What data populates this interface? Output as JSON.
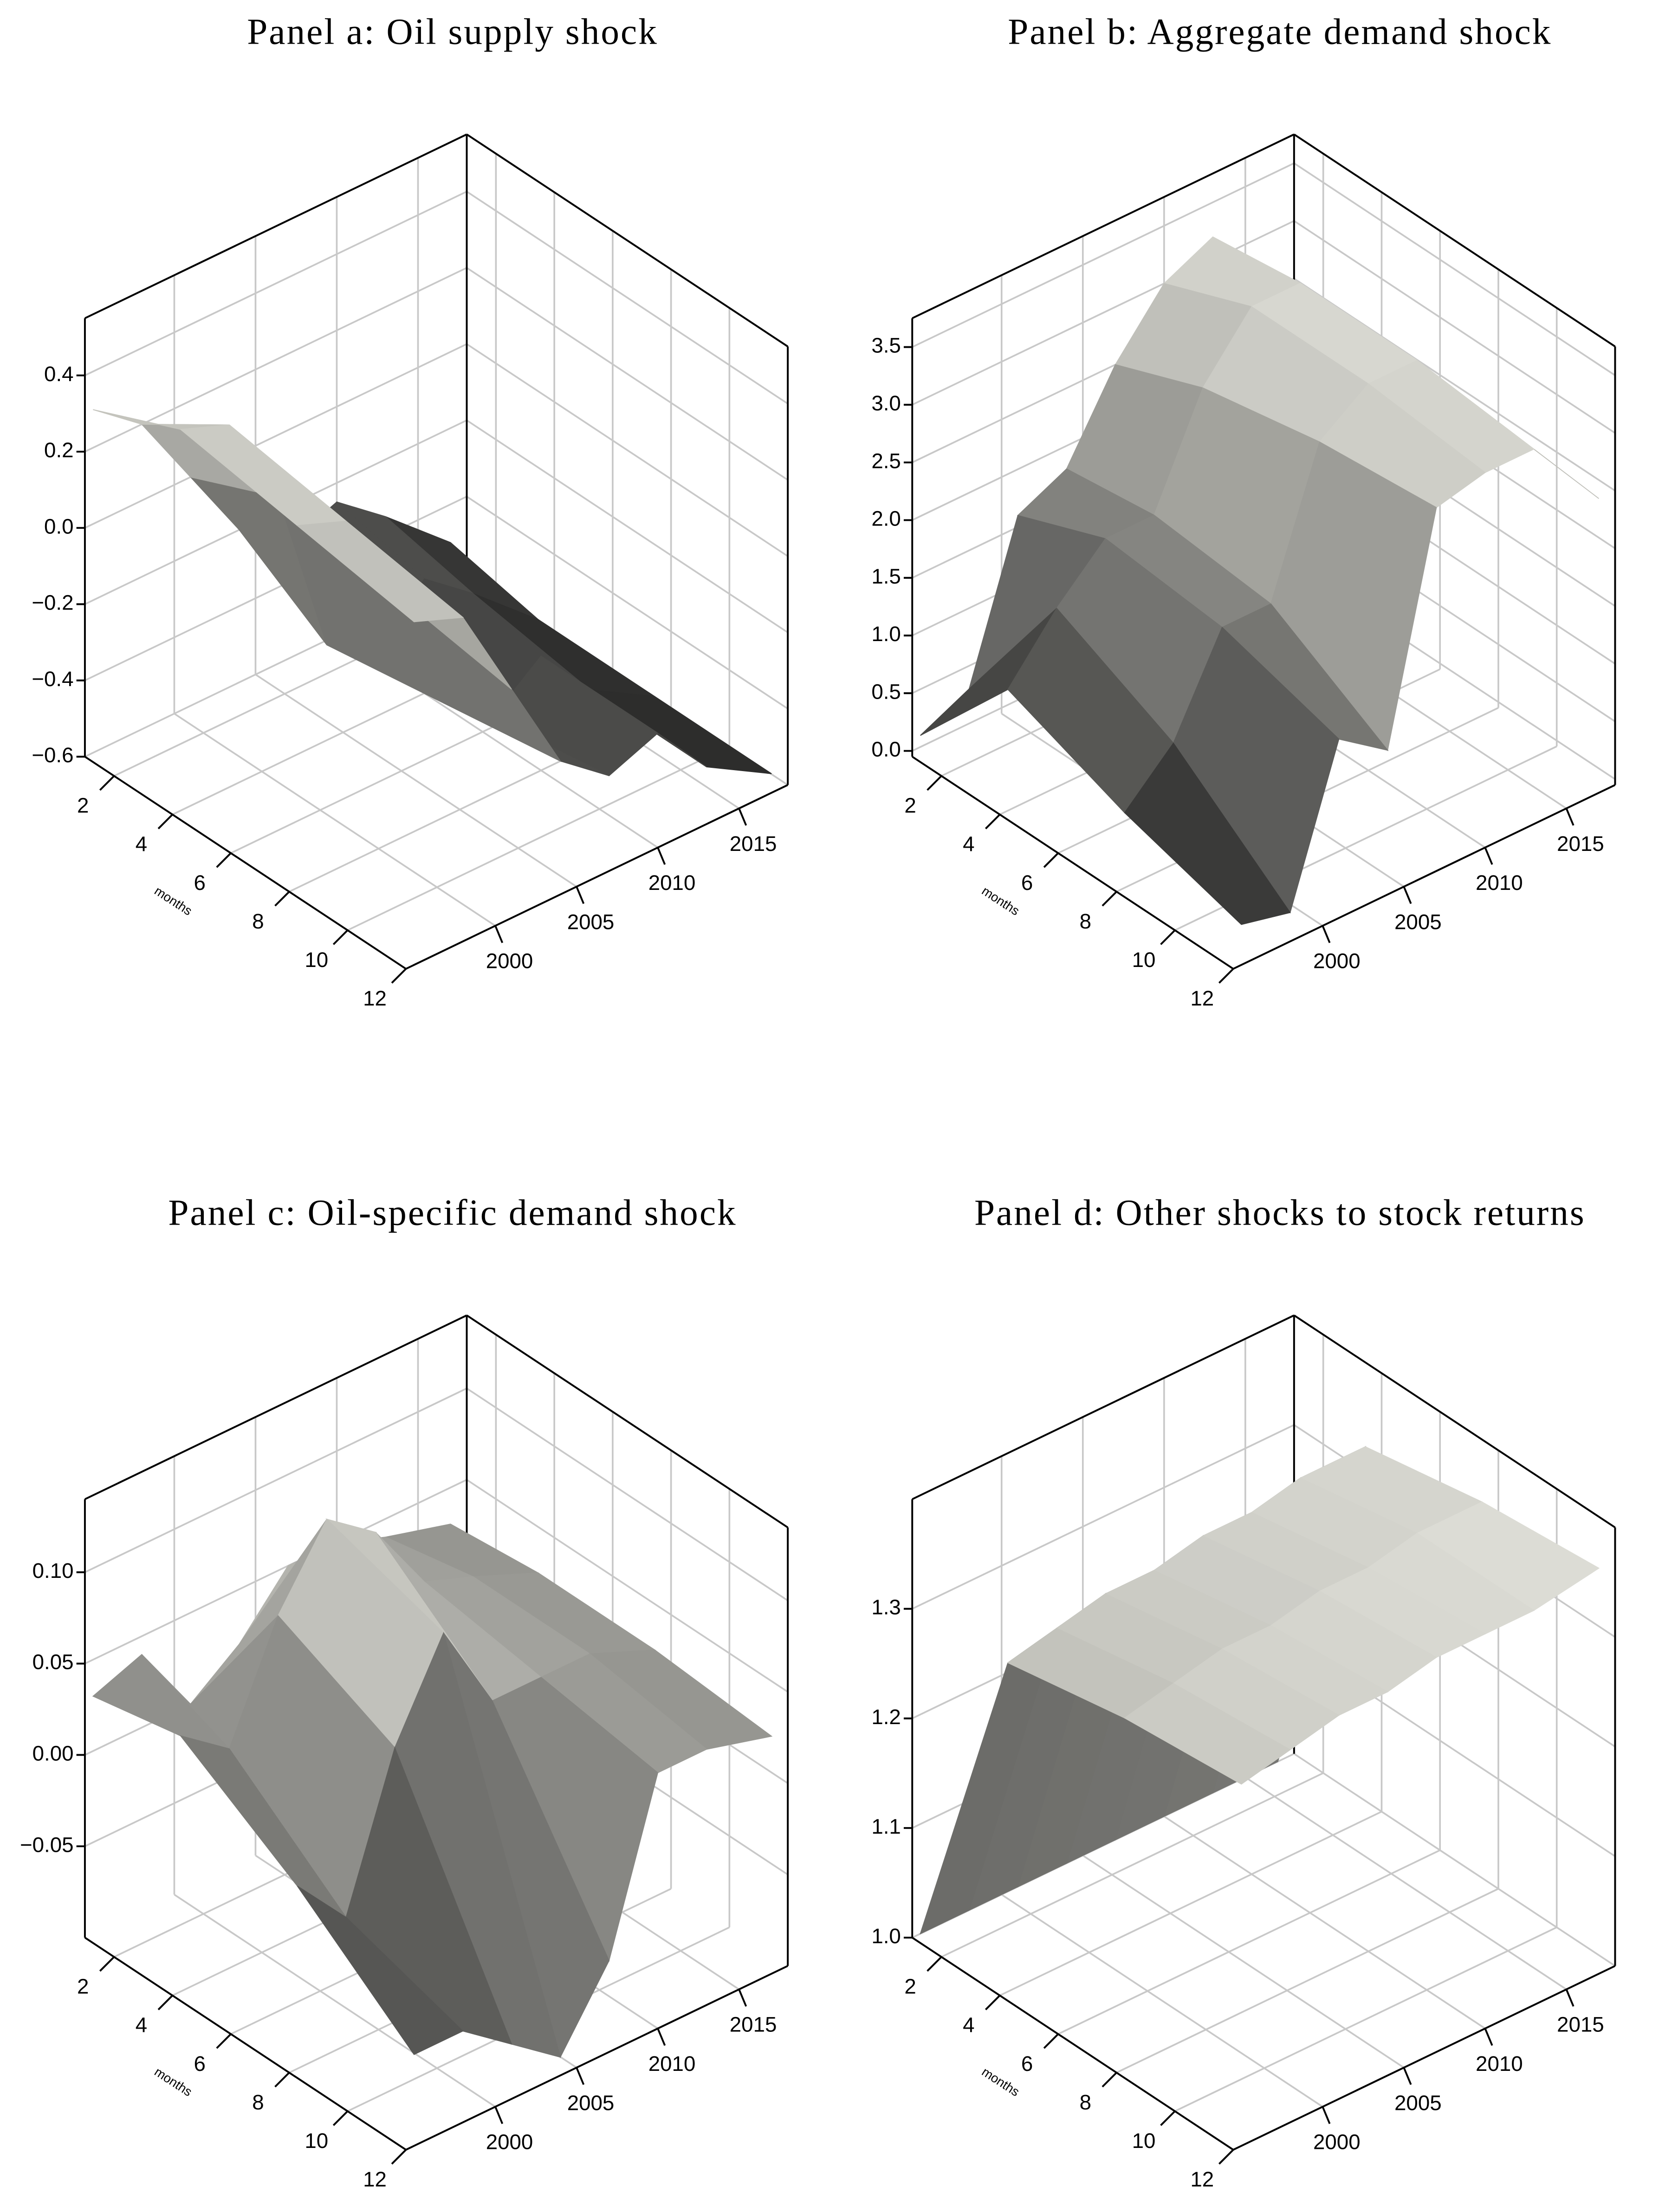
{
  "chart_data": [
    {
      "type": "surface",
      "title": "Panel a: Oil supply shock",
      "xlabel": "months",
      "years": [
        1995,
        1998,
        2001,
        2004,
        2007,
        2010,
        2013,
        2017
      ],
      "months": [
        1,
        4,
        8,
        12
      ],
      "z": [
        [
          0.3,
          0.4,
          0.35,
          0.3
        ],
        [
          0.2,
          0.35,
          0.3,
          0.25
        ],
        [
          0.0,
          0.1,
          0.05,
          0.0
        ],
        [
          -0.2,
          -0.35,
          -0.3,
          -0.25
        ],
        [
          -0.3,
          -0.45,
          -0.4,
          -0.35
        ],
        [
          -0.25,
          -0.3,
          -0.3,
          -0.3
        ],
        [
          -0.35,
          -0.4,
          -0.45,
          -0.45
        ],
        [
          -0.5,
          -0.55,
          -0.55,
          -0.55
        ]
      ],
      "yearlim": [
        1994.5,
        2018
      ],
      "yearticks": [
        2000,
        2005,
        2010,
        2015
      ],
      "monthlim": [
        1,
        12
      ],
      "monthticks": [
        2,
        4,
        6,
        8,
        10,
        12
      ],
      "zlim": [
        -0.6,
        0.55
      ],
      "zticks": [
        {
          "value": -0.6,
          "label": "−0.6"
        },
        {
          "value": -0.4,
          "label": "−0.4"
        },
        {
          "value": -0.2,
          "label": "−0.2"
        },
        {
          "value": 0,
          "label": "0.0"
        },
        {
          "value": 0.2,
          "label": "0.2"
        },
        {
          "value": 0.4,
          "label": "0.4"
        }
      ],
      "colormap": [
        "#1a1a1a",
        "#f0f0e8"
      ],
      "grid": true
    },
    {
      "type": "surface",
      "title": "Panel b: Aggregate demand shock",
      "xlabel": "months",
      "years": [
        1995,
        1998,
        2001,
        2004,
        2007,
        2010,
        2013,
        2017
      ],
      "months": [
        1,
        4,
        8,
        12
      ],
      "z": [
        [
          0.1,
          1.0,
          0.6,
          0.3
        ],
        [
          0.3,
          1.5,
          1.0,
          0.2
        ],
        [
          1.6,
          1.9,
          1.8,
          1.5
        ],
        [
          1.8,
          1.9,
          1.8,
          1.2
        ],
        [
          2.5,
          2.8,
          3.0,
          3.1
        ],
        [
          3.0,
          3.3,
          3.3,
          3.2
        ],
        [
          3.2,
          3.3,
          3.3,
          3.2
        ],
        [
          2.5,
          2.6,
          2.6,
          2.5
        ]
      ],
      "yearlim": [
        1994.5,
        2018
      ],
      "yearticks": [
        2000,
        2005,
        2010,
        2015
      ],
      "monthlim": [
        1,
        12
      ],
      "monthticks": [
        2,
        4,
        6,
        8,
        10,
        12
      ],
      "zlim": [
        -0.05,
        3.75
      ],
      "zticks": [
        {
          "value": 0,
          "label": "0.0"
        },
        {
          "value": 0.5,
          "label": "0.5"
        },
        {
          "value": 1,
          "label": "1.0"
        },
        {
          "value": 1.5,
          "label": "1.5"
        },
        {
          "value": 2,
          "label": "2.0"
        },
        {
          "value": 2.5,
          "label": "2.5"
        },
        {
          "value": 3,
          "label": "3.0"
        },
        {
          "value": 3.5,
          "label": "3.5"
        }
      ],
      "colormap": [
        "#1a1a1a",
        "#f0f0e8"
      ],
      "grid": true
    },
    {
      "type": "surface",
      "title": "Panel c: Oil-specific demand shock",
      "xlabel": "months",
      "years": [
        1995,
        1998,
        2001,
        2004,
        2007,
        2010,
        2013,
        2017
      ],
      "months": [
        1,
        4,
        8,
        12
      ],
      "z": [
        [
          0.03,
          0.04,
          0.0,
          -0.05
        ],
        [
          0.04,
          0.02,
          -0.03,
          -0.05
        ],
        [
          0.0,
          0.08,
          0.05,
          -0.07
        ],
        [
          0.02,
          0.12,
          0.1,
          -0.09
        ],
        [
          0.05,
          0.1,
          0.05,
          -0.05
        ],
        [
          0.05,
          0.06,
          0.05,
          0.04
        ],
        [
          0.04,
          0.05,
          0.05,
          0.04
        ],
        [
          0.03,
          0.035,
          0.035,
          0.03
        ]
      ],
      "yearlim": [
        1994.5,
        2018
      ],
      "yearticks": [
        2000,
        2005,
        2010,
        2015
      ],
      "monthlim": [
        1,
        12
      ],
      "monthticks": [
        2,
        4,
        6,
        8,
        10,
        12
      ],
      "zlim": [
        -0.1,
        0.14
      ],
      "zticks": [
        {
          "value": -0.05,
          "label": "−0.05"
        },
        {
          "value": 0,
          "label": "0.00"
        },
        {
          "value": 0.05,
          "label": "0.05"
        },
        {
          "value": 0.1,
          "label": "0.10"
        }
      ],
      "colormap": [
        "#1a1a1a",
        "#f0f0e8"
      ],
      "grid": true
    },
    {
      "type": "surface",
      "title": "Panel d: Other shocks to stock returns",
      "xlabel": "months",
      "years": [
        1995,
        1998,
        2001,
        2004,
        2007,
        2010,
        2013,
        2017
      ],
      "months": [
        1,
        4,
        8,
        12
      ],
      "z": [
        [
          1.0,
          1.3,
          1.32,
          1.33
        ],
        [
          1.0,
          1.31,
          1.33,
          1.34
        ],
        [
          1.0,
          1.32,
          1.34,
          1.35
        ],
        [
          1.0,
          1.32,
          1.34,
          1.35
        ],
        [
          1.0,
          1.33,
          1.35,
          1.36
        ],
        [
          1.0,
          1.33,
          1.35,
          1.36
        ],
        [
          1.0,
          1.34,
          1.36,
          1.36
        ],
        [
          1.0,
          1.34,
          1.36,
          1.37
        ]
      ],
      "yearlim": [
        1994.5,
        2018
      ],
      "yearticks": [
        2000,
        2005,
        2010,
        2015
      ],
      "monthlim": [
        1,
        12
      ],
      "monthticks": [
        2,
        4,
        6,
        8,
        10,
        12
      ],
      "zlim": [
        1.0,
        1.4
      ],
      "zticks": [
        {
          "value": 1.0,
          "label": "1.0"
        },
        {
          "value": 1.1,
          "label": "1.1"
        },
        {
          "value": 1.2,
          "label": "1.2"
        },
        {
          "value": 1.3,
          "label": "1.3"
        }
      ],
      "colormap": [
        "#1a1a1a",
        "#f0f0e8"
      ],
      "grid": true
    }
  ]
}
